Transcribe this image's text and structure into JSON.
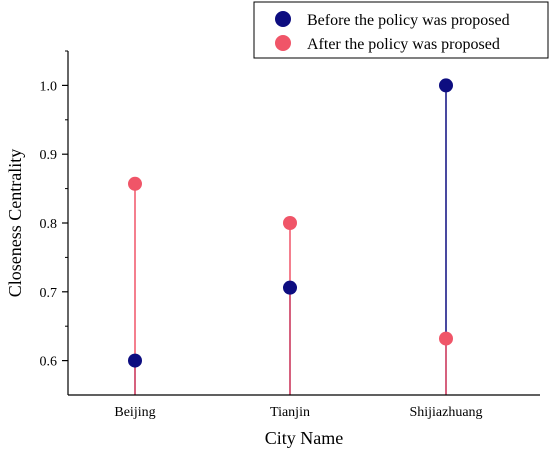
{
  "chart_data": {
    "type": "scatter",
    "title": "",
    "xlabel": "City Name",
    "ylabel": "Closeness Centrality",
    "categories": [
      "Beijing",
      "Tianjin",
      "Shijiazhuang"
    ],
    "ylim": [
      0.55,
      1.05
    ],
    "yticks": [
      "0.6",
      "0.7",
      "0.8",
      "0.9",
      "1.0"
    ],
    "legend_position": "top-right",
    "grid": false,
    "series": [
      {
        "name": "Before the policy was proposed",
        "color": "#0d0d80",
        "values": [
          0.6,
          0.706,
          1.0
        ]
      },
      {
        "name": "After the policy was proposed",
        "color": "#f05568",
        "values": [
          0.857,
          0.8,
          0.632
        ]
      }
    ]
  }
}
